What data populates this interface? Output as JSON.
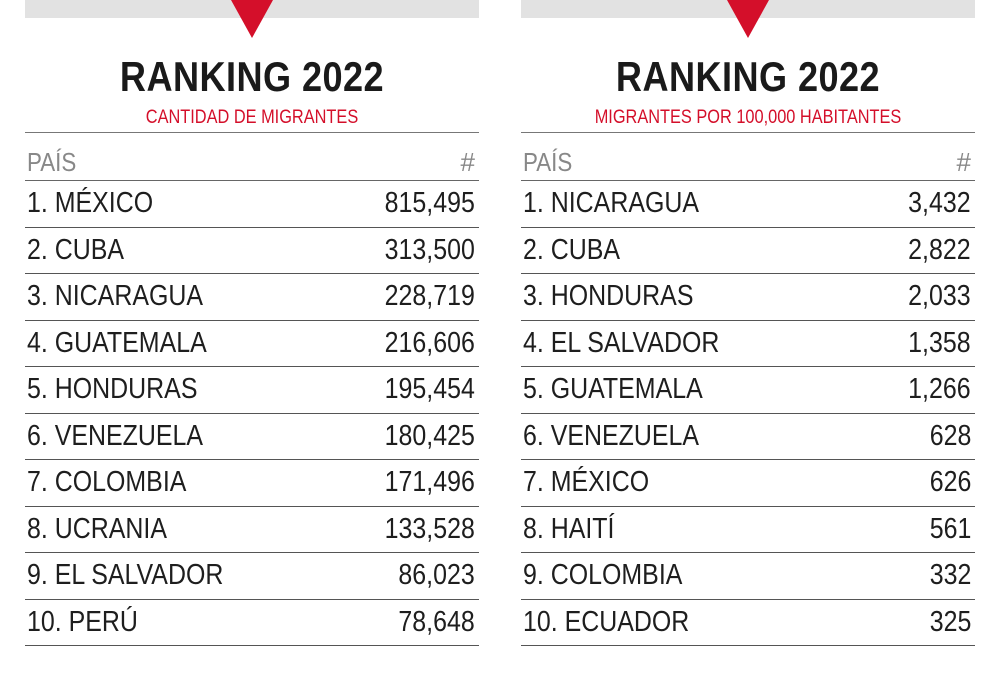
{
  "left": {
    "title": "RANKING 2022",
    "subtitle": "CANTIDAD DE MIGRANTES",
    "col_country": "PAÍS",
    "col_value": "#",
    "rows": [
      {
        "name": "1. MÉXICO",
        "value": "815,495"
      },
      {
        "name": "2. CUBA",
        "value": "313,500"
      },
      {
        "name": "3. NICARAGUA",
        "value": "228,719"
      },
      {
        "name": "4. GUATEMALA",
        "value": "216,606"
      },
      {
        "name": "5. HONDURAS",
        "value": "195,454"
      },
      {
        "name": "6. VENEZUELA",
        "value": "180,425"
      },
      {
        "name": "7. COLOMBIA",
        "value": "171,496"
      },
      {
        "name": "8. UCRANIA",
        "value": "133,528"
      },
      {
        "name": "9. EL SALVADOR",
        "value": "86,023"
      },
      {
        "name": "10. PERÚ",
        "value": "78,648"
      }
    ]
  },
  "right": {
    "title": "RANKING 2022",
    "subtitle": "MIGRANTES POR 100,000 HABITANTES",
    "col_country": "PAÍS",
    "col_value": "#",
    "rows": [
      {
        "name": "1. NICARAGUA",
        "value": "3,432"
      },
      {
        "name": "2. CUBA",
        "value": "2,822"
      },
      {
        "name": "3. HONDURAS",
        "value": "2,033"
      },
      {
        "name": "4. EL SALVADOR",
        "value": "1,358"
      },
      {
        "name": "5. GUATEMALA",
        "value": "1,266"
      },
      {
        "name": "6. VENEZUELA",
        "value": "628"
      },
      {
        "name": "7. MÉXICO",
        "value": "626"
      },
      {
        "name": "8. HAITÍ",
        "value": "561"
      },
      {
        "name": "9. COLOMBIA",
        "value": "332"
      },
      {
        "name": "10. ECUADOR",
        "value": "325"
      }
    ]
  },
  "colors": {
    "accent": "#d40f2a",
    "topbar": "#e2e2e2",
    "text": "#1e1e1e"
  },
  "icons": {
    "arrow": "down-triangle-icon"
  }
}
